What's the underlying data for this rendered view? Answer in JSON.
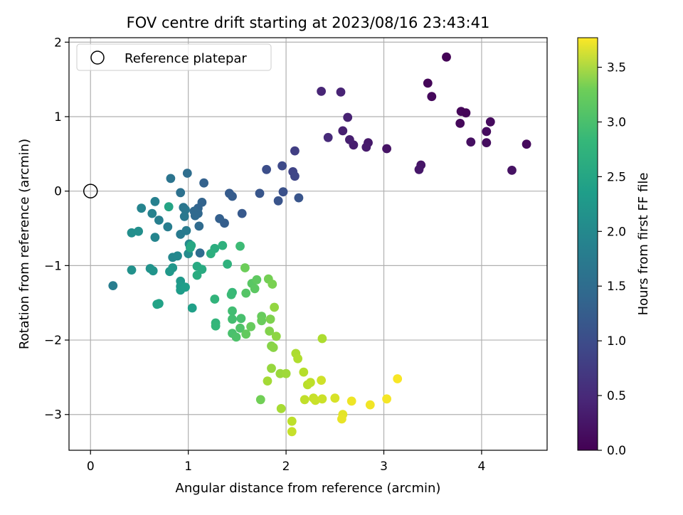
{
  "chart_data": {
    "type": "scatter",
    "title": "FOV centre drift starting at 2023/08/16 23:43:41",
    "xlabel": "Angular distance from reference (arcmin)",
    "ylabel": "Rotation from reference (arcmin)",
    "xlim": [
      -0.22,
      4.67
    ],
    "ylim": [
      -3.48,
      2.06
    ],
    "xticks": [
      0,
      1,
      2,
      3,
      4
    ],
    "yticks": [
      -3,
      -2,
      -1,
      0,
      1,
      2
    ],
    "grid": true,
    "legend": {
      "location": "upper-left",
      "entries": [
        "Reference platepar"
      ]
    },
    "reference_point": {
      "x": 0,
      "y": 0,
      "marker": "open-circle"
    },
    "colorbar": {
      "label": "Hours from first FF file",
      "colormap": "viridis",
      "range": [
        0.0,
        3.77
      ],
      "ticks": [
        "0.0",
        "0.5",
        "1.0",
        "1.5",
        "2.0",
        "2.5",
        "3.0",
        "3.5"
      ]
    },
    "points": [
      [
        3.64,
        1.8,
        0.02
      ],
      [
        3.45,
        1.45,
        0.05
      ],
      [
        3.49,
        1.27,
        0.08
      ],
      [
        3.79,
        1.07,
        0.06
      ],
      [
        3.84,
        1.05,
        0.04
      ],
      [
        3.78,
        0.91,
        0.07
      ],
      [
        4.09,
        0.93,
        0.1
      ],
      [
        4.05,
        0.8,
        0.12
      ],
      [
        3.89,
        0.66,
        0.15
      ],
      [
        4.05,
        0.65,
        0.13
      ],
      [
        4.46,
        0.63,
        0.09
      ],
      [
        4.31,
        0.28,
        0.18
      ],
      [
        3.38,
        0.35,
        0.22
      ],
      [
        3.36,
        0.29,
        0.24
      ],
      [
        3.03,
        0.57,
        0.2
      ],
      [
        2.84,
        0.65,
        0.26
      ],
      [
        2.82,
        0.59,
        0.28
      ],
      [
        2.69,
        0.62,
        0.3
      ],
      [
        2.65,
        0.69,
        0.32
      ],
      [
        2.58,
        0.81,
        0.33
      ],
      [
        2.63,
        0.99,
        0.35
      ],
      [
        2.56,
        1.33,
        0.38
      ],
      [
        2.36,
        1.34,
        0.4
      ],
      [
        2.43,
        0.72,
        0.45
      ],
      [
        2.09,
        0.54,
        0.7
      ],
      [
        2.07,
        0.26,
        0.78
      ],
      [
        2.09,
        0.2,
        0.8
      ],
      [
        1.96,
        0.34,
        0.85
      ],
      [
        1.8,
        0.29,
        0.9
      ],
      [
        1.97,
        -0.01,
        0.95
      ],
      [
        1.92,
        -0.13,
        0.98
      ],
      [
        2.13,
        -0.09,
        1.0
      ],
      [
        1.73,
        -0.03,
        1.02
      ],
      [
        1.55,
        -0.3,
        1.05
      ],
      [
        1.42,
        -0.03,
        1.08
      ],
      [
        1.45,
        -0.07,
        1.1
      ],
      [
        1.37,
        -0.43,
        1.12
      ],
      [
        1.32,
        -0.37,
        1.15
      ],
      [
        1.16,
        0.11,
        1.17
      ],
      [
        1.14,
        -0.15,
        1.2
      ],
      [
        1.1,
        -0.23,
        1.22
      ],
      [
        1.1,
        -0.3,
        1.25
      ],
      [
        1.06,
        -0.27,
        1.27
      ],
      [
        1.07,
        -0.33,
        1.28
      ],
      [
        1.11,
        -0.47,
        1.3
      ],
      [
        1.12,
        -0.83,
        1.32
      ],
      [
        0.99,
        0.24,
        1.35
      ],
      [
        0.92,
        -0.02,
        1.4
      ],
      [
        0.82,
        0.17,
        1.45
      ],
      [
        0.95,
        -0.22,
        1.48
      ],
      [
        0.97,
        -0.25,
        1.5
      ],
      [
        0.96,
        -0.34,
        1.52
      ],
      [
        0.92,
        -0.58,
        1.55
      ],
      [
        0.98,
        -0.53,
        1.57
      ],
      [
        0.79,
        -0.48,
        1.6
      ],
      [
        0.7,
        -0.39,
        1.62
      ],
      [
        0.66,
        -0.14,
        1.65
      ],
      [
        0.63,
        -0.3,
        1.68
      ],
      [
        0.52,
        -0.23,
        1.7
      ],
      [
        0.66,
        -0.62,
        1.72
      ],
      [
        0.84,
        -0.89,
        1.75
      ],
      [
        0.89,
        -0.87,
        1.77
      ],
      [
        1.01,
        -0.71,
        1.8
      ],
      [
        1.0,
        -0.84,
        1.82
      ],
      [
        0.23,
        -1.27,
        1.6
      ],
      [
        0.42,
        -0.56,
        1.85
      ],
      [
        0.49,
        -0.54,
        1.87
      ],
      [
        0.42,
        -1.06,
        1.9
      ],
      [
        0.61,
        -1.04,
        1.92
      ],
      [
        0.64,
        -1.07,
        1.95
      ],
      [
        0.84,
        -1.03,
        1.97
      ],
      [
        0.81,
        -1.08,
        2.0
      ],
      [
        0.92,
        -1.21,
        2.02
      ],
      [
        0.92,
        -1.28,
        2.05
      ],
      [
        0.92,
        -1.33,
        2.07
      ],
      [
        0.97,
        -1.29,
        2.1
      ],
      [
        1.04,
        -1.57,
        2.12
      ],
      [
        0.7,
        -1.51,
        2.15
      ],
      [
        0.68,
        -1.52,
        2.17
      ],
      [
        0.8,
        -0.21,
        2.2
      ],
      [
        1.02,
        -0.76,
        2.22
      ],
      [
        1.03,
        -0.73,
        2.25
      ],
      [
        1.09,
        -1.01,
        2.28
      ],
      [
        1.14,
        -1.05,
        2.3
      ],
      [
        1.09,
        -1.13,
        2.32
      ],
      [
        1.27,
        -0.77,
        2.35
      ],
      [
        1.23,
        -0.84,
        2.37
      ],
      [
        1.35,
        -0.73,
        2.4
      ],
      [
        1.4,
        -0.98,
        2.42
      ],
      [
        1.27,
        -1.45,
        2.45
      ],
      [
        1.28,
        -1.77,
        2.47
      ],
      [
        1.28,
        -1.81,
        2.5
      ],
      [
        1.45,
        -1.36,
        2.52
      ],
      [
        1.44,
        -1.39,
        2.55
      ],
      [
        1.53,
        -0.74,
        2.57
      ],
      [
        1.45,
        -1.61,
        2.6
      ],
      [
        1.45,
        -1.72,
        2.62
      ],
      [
        1.54,
        -1.71,
        2.65
      ],
      [
        1.45,
        -1.91,
        2.67
      ],
      [
        1.49,
        -1.96,
        2.7
      ],
      [
        1.53,
        -1.84,
        2.72
      ],
      [
        1.59,
        -1.37,
        2.75
      ],
      [
        1.65,
        -1.24,
        2.78
      ],
      [
        1.68,
        -1.31,
        2.8
      ],
      [
        1.7,
        -1.19,
        2.82
      ],
      [
        1.59,
        -1.92,
        2.85
      ],
      [
        1.64,
        -1.82,
        2.87
      ],
      [
        1.75,
        -1.68,
        2.88
      ],
      [
        1.75,
        -1.74,
        2.9
      ],
      [
        1.58,
        -1.03,
        2.92
      ],
      [
        1.74,
        -2.8,
        2.95
      ],
      [
        1.82,
        -1.18,
        2.97
      ],
      [
        1.86,
        -1.25,
        3.0
      ],
      [
        1.84,
        -1.72,
        3.02
      ],
      [
        1.83,
        -1.88,
        3.05
      ],
      [
        1.85,
        -2.08,
        3.07
      ],
      [
        1.87,
        -2.1,
        3.1
      ],
      [
        1.9,
        -1.95,
        3.12
      ],
      [
        1.88,
        -1.56,
        3.15
      ],
      [
        1.85,
        -2.38,
        3.17
      ],
      [
        1.94,
        -2.45,
        3.2
      ],
      [
        2.0,
        -2.45,
        3.22
      ],
      [
        1.81,
        -2.55,
        3.25
      ],
      [
        1.95,
        -2.92,
        3.27
      ],
      [
        2.1,
        -2.18,
        3.3
      ],
      [
        2.12,
        -2.25,
        3.32
      ],
      [
        2.18,
        -2.43,
        3.35
      ],
      [
        2.22,
        -2.6,
        3.37
      ],
      [
        2.25,
        -2.57,
        3.4
      ],
      [
        2.19,
        -2.8,
        3.42
      ],
      [
        2.28,
        -2.78,
        3.45
      ],
      [
        2.3,
        -2.81,
        3.47
      ],
      [
        2.36,
        -2.54,
        3.5
      ],
      [
        2.37,
        -2.79,
        3.48
      ],
      [
        2.37,
        -1.98,
        3.3
      ],
      [
        2.06,
        -3.09,
        3.4
      ],
      [
        2.06,
        -3.23,
        3.45
      ],
      [
        2.5,
        -2.78,
        3.55
      ],
      [
        2.58,
        -3.0,
        3.62
      ],
      [
        2.57,
        -3.06,
        3.65
      ],
      [
        2.67,
        -2.82,
        3.68
      ],
      [
        2.86,
        -2.87,
        3.7
      ],
      [
        3.03,
        -2.79,
        3.72
      ],
      [
        3.14,
        -2.52,
        3.74
      ]
    ]
  }
}
